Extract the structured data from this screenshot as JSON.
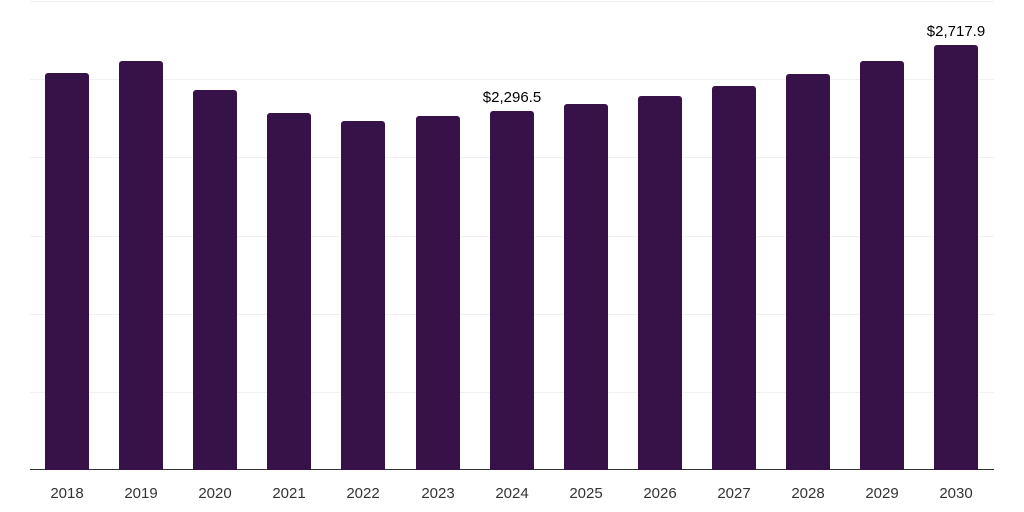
{
  "chart_data": {
    "type": "bar",
    "title": "",
    "xlabel": "",
    "ylabel": "",
    "categories": [
      "2018",
      "2019",
      "2020",
      "2021",
      "2022",
      "2023",
      "2024",
      "2025",
      "2026",
      "2027",
      "2028",
      "2029",
      "2030"
    ],
    "values": [
      2539,
      2616,
      2430,
      2283,
      2232,
      2264,
      2296.5,
      2341,
      2392,
      2456,
      2533,
      2616,
      2717.9
    ],
    "data_labels": [
      {
        "category": "2024",
        "text": "$2,296.5"
      },
      {
        "category": "2030",
        "text": "$2,717.9"
      }
    ],
    "ylim": [
      0,
      3000
    ],
    "y_gridlines": [
      500,
      1000,
      1500,
      2000,
      2500,
      3000
    ],
    "grid": true,
    "y_axis_labels_visible": false,
    "legend": null,
    "bar_color": "#371249",
    "baseline_color": "#333333",
    "gridline_color": "#f0f0f0"
  }
}
